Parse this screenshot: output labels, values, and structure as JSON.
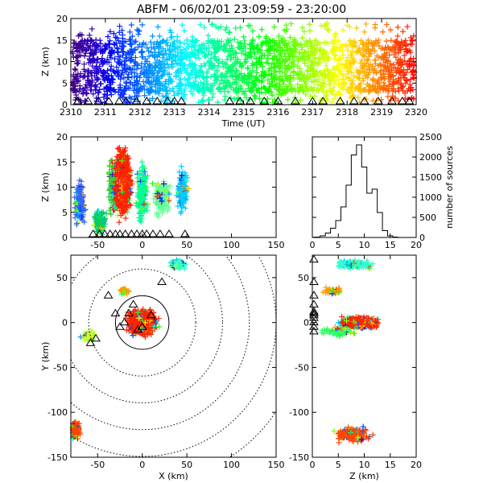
{
  "title": "ABFM - 06/02/01 23:09:59 - 23:20:00",
  "chart_data": [
    {
      "id": "time_height",
      "type": "scatter",
      "xlabel": "Time (UT)",
      "ylabel": "Z (km)",
      "xlim": [
        2310,
        2320
      ],
      "ylim": [
        0,
        20
      ],
      "x_ticks": [
        "2310",
        "2311",
        "2312",
        "2313",
        "2314",
        "2315",
        "2316",
        "2317",
        "2318",
        "2319",
        "2320"
      ],
      "y_ticks": [
        0,
        5,
        10,
        15,
        20
      ],
      "color_by": "time (rainbow, purple to red)",
      "source_band": {
        "z_low": 3,
        "z_high": 15
      },
      "station_markers_x": [
        2310.2,
        2310.5,
        2310.8,
        2311.1,
        2311.4,
        2311.6,
        2311.9,
        2312.2,
        2312.5,
        2312.8,
        2313.0,
        2313.2,
        2314.6,
        2314.9,
        2315.2,
        2315.6,
        2316.0,
        2316.5,
        2317.0,
        2317.3,
        2317.8,
        2318.2,
        2318.5,
        2318.9,
        2319.3,
        2319.6,
        2319.8
      ]
    },
    {
      "id": "x_height",
      "type": "scatter",
      "xlabel": "",
      "ylabel": "Z (km)",
      "xlim": [
        -80,
        150
      ],
      "ylim": [
        0,
        20
      ],
      "x_ticks": [
        -50,
        0,
        50,
        100,
        150
      ],
      "y_ticks": [
        0,
        5,
        10,
        15,
        20
      ],
      "clusters": [
        {
          "x": -70,
          "z": 7,
          "color": "#3366ff"
        },
        {
          "x": -48,
          "z": 3,
          "color": "#00cc66"
        },
        {
          "x": -32,
          "z": 10,
          "color": "#33cc33"
        },
        {
          "x": -22,
          "z": 11,
          "color": "#ff2200"
        },
        {
          "x": 0,
          "z": 9,
          "color": "#00ff99"
        },
        {
          "x": 22,
          "z": 8,
          "color": "#66ff99"
        },
        {
          "x": 45,
          "z": 9,
          "color": "#00ccff"
        }
      ]
    },
    {
      "id": "histogram",
      "type": "bar",
      "ylabel": "number of sources",
      "xlim": [
        0,
        20
      ],
      "ylim": [
        0,
        2500
      ],
      "x_ticks": [
        0,
        5,
        10,
        15,
        20
      ],
      "y_ticks": [
        0,
        500,
        1000,
        1500,
        2000,
        2500
      ],
      "bin_centers": [
        1,
        2,
        3,
        4,
        5,
        6,
        7,
        8,
        9,
        10,
        11,
        12,
        13,
        14,
        15,
        16,
        17
      ],
      "values": [
        10,
        40,
        110,
        230,
        420,
        760,
        1300,
        2050,
        2300,
        1750,
        1100,
        1200,
        620,
        170,
        40,
        10,
        0
      ]
    },
    {
      "id": "plan_view",
      "type": "scatter",
      "xlabel": "X (km)",
      "ylabel": "Y (km)",
      "xlim": [
        -80,
        150
      ],
      "ylim": [
        -150,
        75
      ],
      "x_ticks": [
        -50,
        0,
        50,
        100,
        150
      ],
      "y_ticks": [
        -150,
        -100,
        -50,
        0,
        50
      ],
      "range_rings_km": [
        30,
        60,
        90,
        120,
        150,
        180
      ],
      "clusters": [
        {
          "x": 0,
          "y": 0,
          "color": "#ff2200"
        },
        {
          "x": 40,
          "y": 65,
          "color": "#33ffcc"
        },
        {
          "x": -20,
          "y": 35,
          "color": "#ff9900"
        },
        {
          "x": -60,
          "y": -15,
          "color": "#ccff33"
        },
        {
          "x": -75,
          "y": -120,
          "color": "#ff4400"
        }
      ]
    },
    {
      "id": "height_y",
      "type": "scatter",
      "xlabel": "Z (km)",
      "ylabel": "",
      "xlim": [
        0,
        20
      ],
      "ylim": [
        -150,
        75
      ],
      "x_ticks": [
        0,
        5,
        10,
        15,
        20
      ],
      "y_ticks": [
        -150,
        -100,
        -50,
        0,
        50
      ]
    }
  ]
}
